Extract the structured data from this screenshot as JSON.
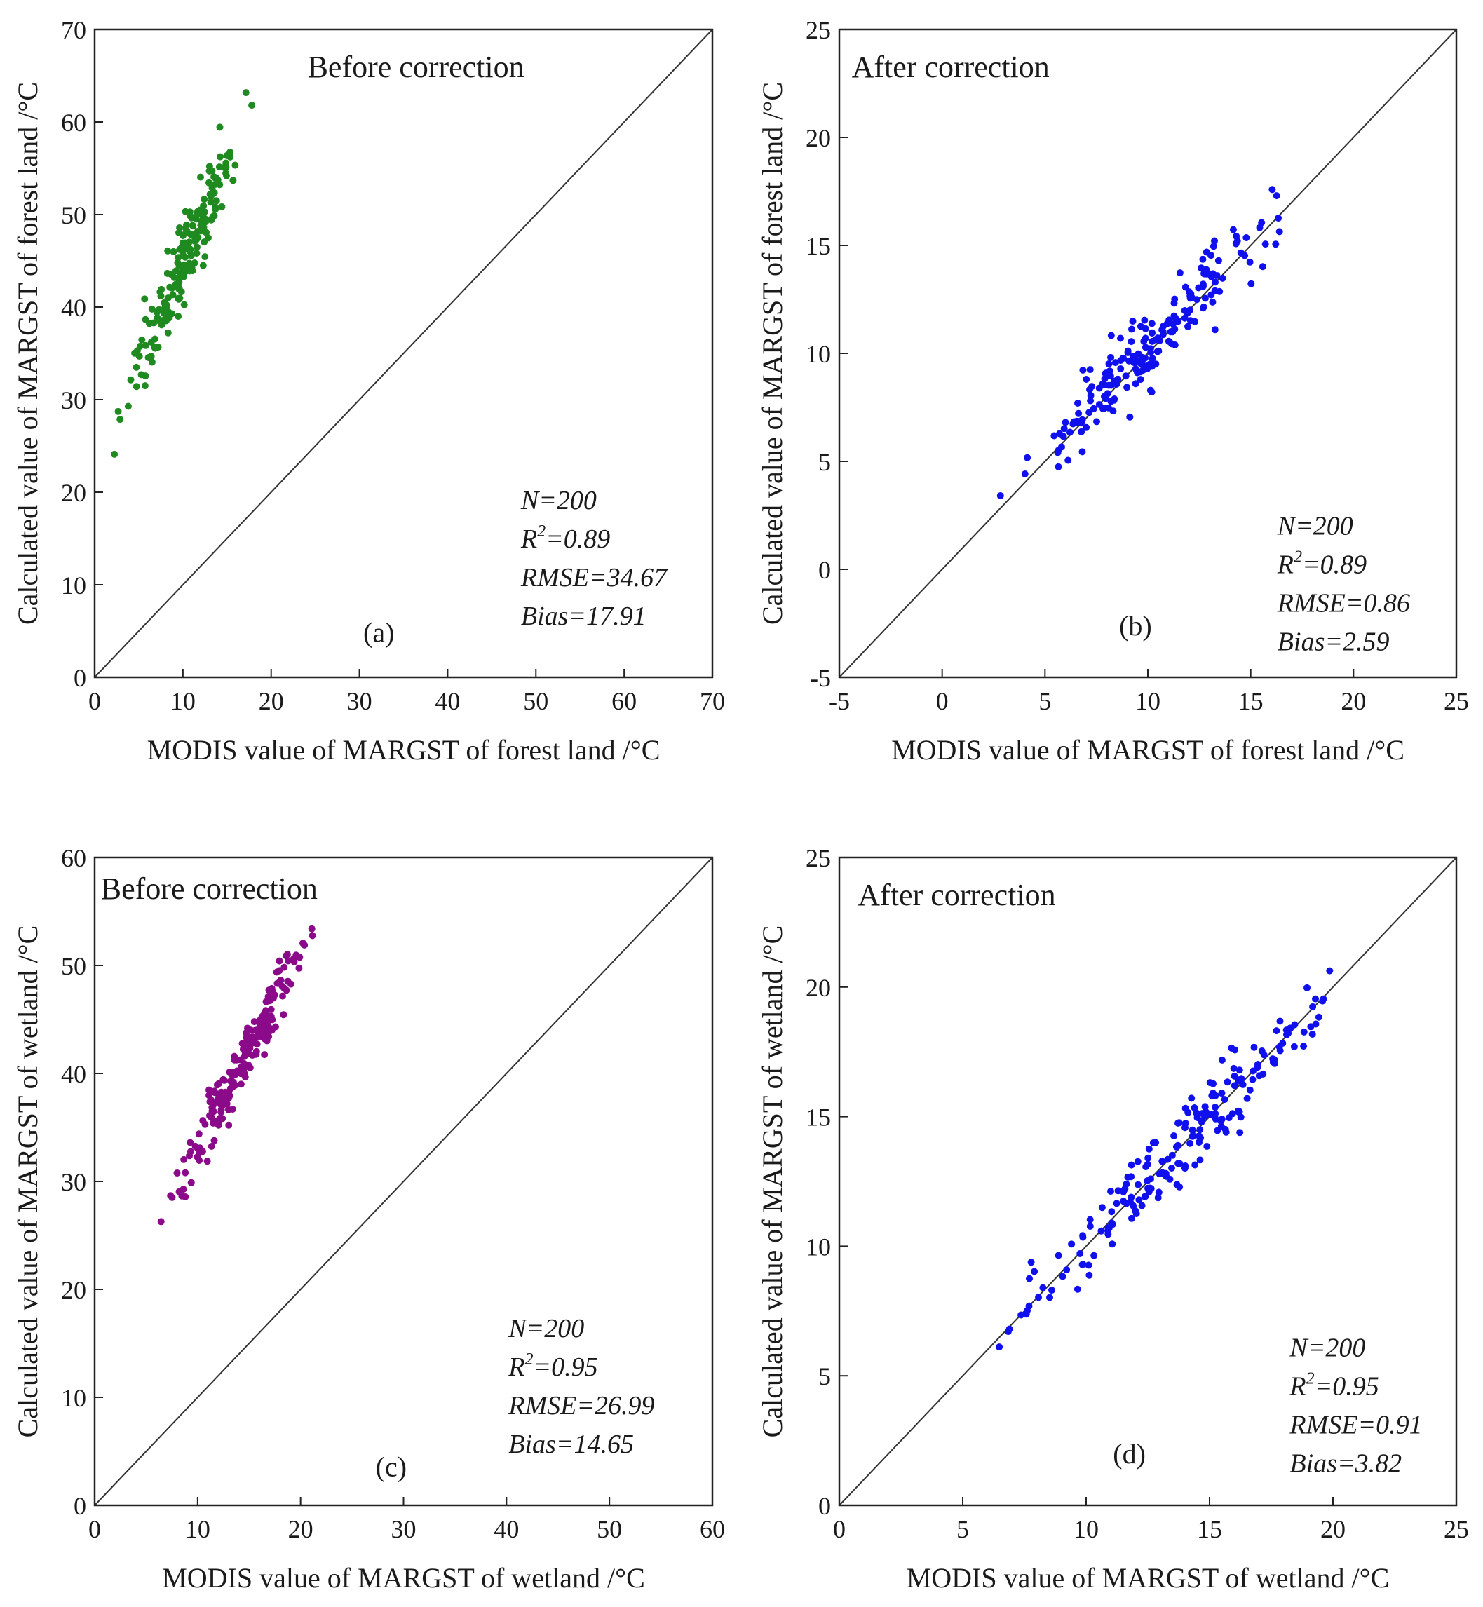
{
  "figure": {
    "description_free": true
  },
  "chart_data": [
    {
      "id": "a",
      "type": "scatter",
      "title": "Before correction",
      "panel_label": "(a)",
      "xlabel": "MODIS value of MARGST of  forest land /°C",
      "ylabel": "Calculated value of MARGST of forest land /°C",
      "xlim": [
        0,
        70
      ],
      "ylim": [
        0,
        70
      ],
      "xticks": [
        0,
        10,
        20,
        30,
        40,
        50,
        60,
        70
      ],
      "yticks": [
        0,
        10,
        20,
        30,
        40,
        50,
        60,
        70
      ],
      "reference_line": "1:1",
      "point_color": "#1f8a1f",
      "stats": [
        "N=200",
        "R²=0.89",
        "RMSE=34.67",
        "Bias=17.91"
      ],
      "generator": {
        "n": 200,
        "x_min": 1.5,
        "x_max": 18.5,
        "slope": 2.15,
        "intercept": 23.5,
        "noise": 2.2,
        "seed": 11
      }
    },
    {
      "id": "b",
      "type": "scatter",
      "title": "After correction",
      "panel_label": "(b)",
      "xlabel": "MODIS value of MARGST of  forest land /°C",
      "ylabel": "Calculated value of MARGST of forest land /°C",
      "xlim": [
        -5,
        25
      ],
      "ylim": [
        -5,
        25
      ],
      "xticks": [
        -5,
        0,
        5,
        10,
        15,
        20,
        25
      ],
      "yticks": [
        -5,
        0,
        5,
        10,
        15,
        20,
        25
      ],
      "reference_line": "1:1",
      "point_color": "#1010ee",
      "stats": [
        "N=200",
        "R²=0.89",
        "RMSE=0.86",
        "Bias=2.59"
      ],
      "generator": {
        "n": 200,
        "x_min": 2.0,
        "x_max": 18.5,
        "slope": 0.93,
        "intercept": 0.9,
        "noise": 0.8,
        "seed": 23
      }
    },
    {
      "id": "c",
      "type": "scatter",
      "title": "Before correction",
      "panel_label": "(c)",
      "xlabel": "MODIS value of MARGST of  wetland /°C",
      "ylabel": "Calculated value of MARGST of wetland /°C",
      "xlim": [
        0,
        60
      ],
      "ylim": [
        0,
        60
      ],
      "xticks": [
        0,
        10,
        20,
        30,
        40,
        50,
        60
      ],
      "yticks": [
        0,
        10,
        20,
        30,
        40,
        50,
        60
      ],
      "reference_line": "1:1",
      "point_color": "#8a0a8a",
      "stats": [
        "N=200",
        "R²=0.95",
        "RMSE=26.99",
        "Bias=14.65"
      ],
      "generator": {
        "n": 200,
        "x_min": 4.8,
        "x_max": 23.0,
        "slope": 1.78,
        "intercept": 15.5,
        "noise": 1.3,
        "seed": 37
      }
    },
    {
      "id": "d",
      "type": "scatter",
      "title": "After correction",
      "panel_label": "(d)",
      "xlabel": "MODIS value of MARGST of  wetland /°C",
      "ylabel": "Calculated value of MARGST of wetland /°C",
      "xlim": [
        0,
        25
      ],
      "ylim": [
        0,
        25
      ],
      "xticks": [
        0,
        5,
        10,
        15,
        20,
        25
      ],
      "yticks": [
        0,
        5,
        10,
        15,
        20,
        25
      ],
      "reference_line": "1:1",
      "point_color": "#1010ee",
      "stats": [
        "N=200",
        "R²=0.95",
        "RMSE=0.91",
        "Bias=3.82"
      ],
      "generator": {
        "n": 200,
        "x_min": 4.5,
        "x_max": 23.5,
        "slope": 0.97,
        "intercept": 0.4,
        "noise": 0.75,
        "seed": 53
      }
    }
  ]
}
